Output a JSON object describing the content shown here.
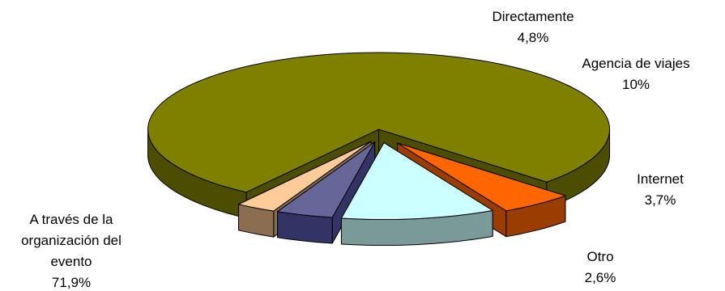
{
  "chart_data": {
    "type": "pie",
    "style": "3d-exploded",
    "legend": "none",
    "slices": [
      {
        "label": "A través de la organización del evento",
        "label_lines": [
          "A través de la",
          "organización del",
          "evento"
        ],
        "value_label": "71,9%",
        "value": 71.9,
        "top_color": "#808000",
        "side_color": "#4d4d00"
      },
      {
        "label": "Directamente",
        "label_lines": [
          "Directamente"
        ],
        "value_label": "4,8%",
        "value": 4.8,
        "top_color": "#ff6600",
        "side_color": "#993d00"
      },
      {
        "label": "Agencia de viajes",
        "label_lines": [
          "Agencia de viajes"
        ],
        "value_label": "10%",
        "value": 10,
        "top_color": "#ccffff",
        "side_color": "#7a9999"
      },
      {
        "label": "Internet",
        "label_lines": [
          "Internet"
        ],
        "value_label": "3,7%",
        "value": 3.7,
        "top_color": "#666699",
        "side_color": "#333366"
      },
      {
        "label": "Otro",
        "label_lines": [
          "Otro"
        ],
        "value_label": "2,6%",
        "value": 2.6,
        "top_color": "#ffcc99",
        "side_color": "#8b6d4f"
      }
    ]
  }
}
